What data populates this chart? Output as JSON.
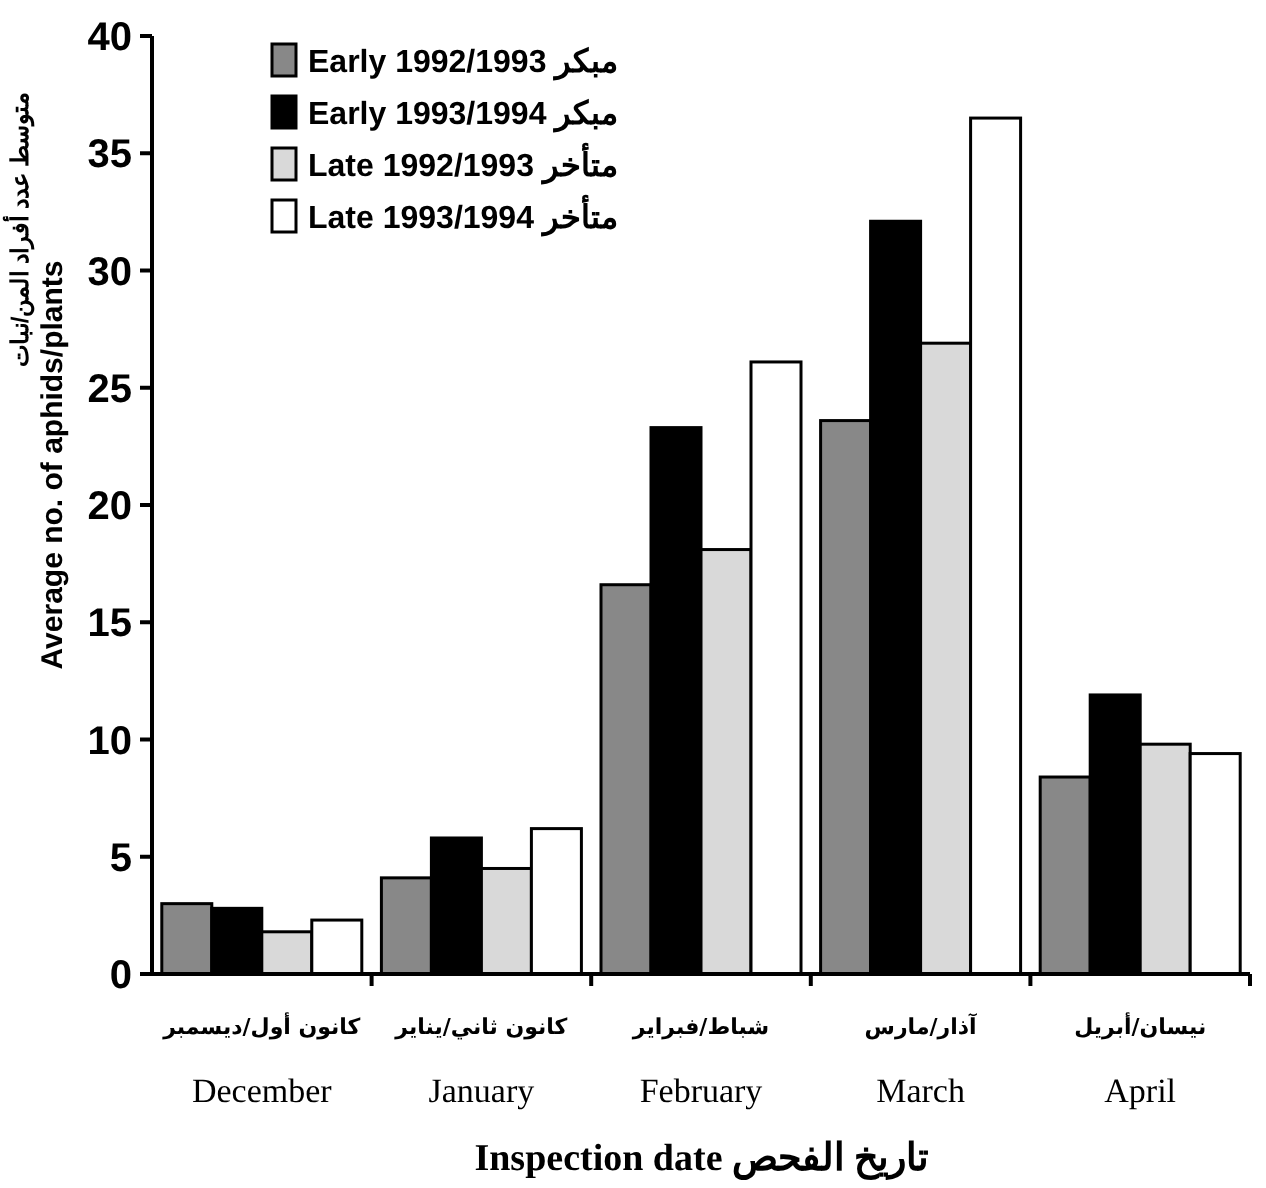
{
  "chart_data": {
    "type": "bar",
    "categories": [
      "كانون أول/ديسمبر\nDecember",
      "كانون ثاني/يناير\nJanuary",
      "شباط/فبراير\nFebruary",
      "آذار/مارس\nMarch",
      "نيسان/أبريل\nApril"
    ],
    "series": [
      {
        "name": "Early 1992/1993 مبكر",
        "color": "#888888",
        "values": [
          3.0,
          4.1,
          16.6,
          23.6,
          8.4
        ]
      },
      {
        "name": "Early 1993/1994 مبكر",
        "color": "#000000",
        "values": [
          2.8,
          5.8,
          23.3,
          32.1,
          11.9
        ]
      },
      {
        "name": "Late 1992/1993 متأخر",
        "color": "#d9d9d9",
        "values": [
          1.8,
          4.5,
          18.1,
          26.9,
          9.8
        ]
      },
      {
        "name": "Late 1993/1994 متأخر",
        "color": "#ffffff",
        "values": [
          2.3,
          6.2,
          26.1,
          36.5,
          9.4
        ]
      }
    ],
    "ylabel": "متوسط عدد أفراد المن/نبات\nAverage no. of aphids/plants",
    "xlabel": "Inspection date تاريخ الفحص",
    "ylim": [
      0,
      40
    ],
    "yticks": [
      0,
      5,
      10,
      15,
      20,
      25,
      30,
      35,
      40
    ],
    "legend": "top left",
    "grid": false
  }
}
